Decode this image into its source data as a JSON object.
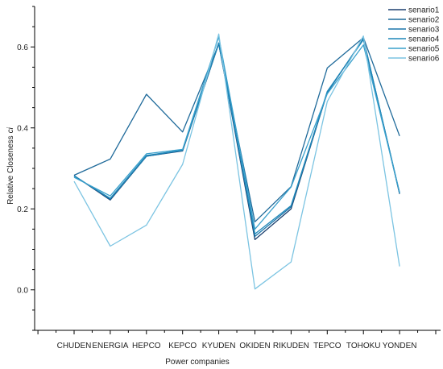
{
  "chart_data": {
    "type": "line",
    "xlabel": "Power companies",
    "ylabel": "Relative Closeness",
    "ylabel_symbol": "ci",
    "categories": [
      "CHUDEN",
      "ENERGIA",
      "HEPCO",
      "KEPCO",
      "KYUDEN",
      "OKIDEN",
      "RIKUDEN",
      "TEPCO",
      "TOHOKU",
      "YONDEN"
    ],
    "ylim": [
      -0.1,
      0.7
    ],
    "yticks": [
      0.0,
      0.2,
      0.4,
      0.6
    ],
    "ytick_labels": [
      "0.0",
      "0.2",
      "0.4",
      "0.6"
    ],
    "grid": false,
    "legend_position": "top-right",
    "series": [
      {
        "name": "senario1",
        "color": "#1b3f6e",
        "values": [
          0.282,
          0.222,
          0.33,
          0.343,
          0.608,
          0.124,
          0.2,
          0.488,
          0.62,
          0.237
        ]
      },
      {
        "name": "senario2",
        "color": "#1f6a9a",
        "values": [
          0.283,
          0.323,
          0.483,
          0.39,
          0.607,
          0.168,
          0.255,
          0.548,
          0.623,
          0.38
        ]
      },
      {
        "name": "senario3",
        "color": "#1c77ab",
        "values": [
          0.282,
          0.224,
          0.33,
          0.344,
          0.609,
          0.132,
          0.205,
          0.487,
          0.621,
          0.238
        ]
      },
      {
        "name": "senario4",
        "color": "#1f87b8",
        "values": [
          0.281,
          0.226,
          0.332,
          0.345,
          0.61,
          0.138,
          0.208,
          0.49,
          0.618,
          0.24
        ]
      },
      {
        "name": "senario5",
        "color": "#3aa0cc",
        "values": [
          0.278,
          0.232,
          0.336,
          0.347,
          0.625,
          0.15,
          0.254,
          0.484,
          0.605,
          0.24
        ]
      },
      {
        "name": "senario6",
        "color": "#7cc4e2",
        "values": [
          0.268,
          0.108,
          0.16,
          0.31,
          0.632,
          0.002,
          0.069,
          0.465,
          0.627,
          0.058
        ]
      }
    ]
  }
}
